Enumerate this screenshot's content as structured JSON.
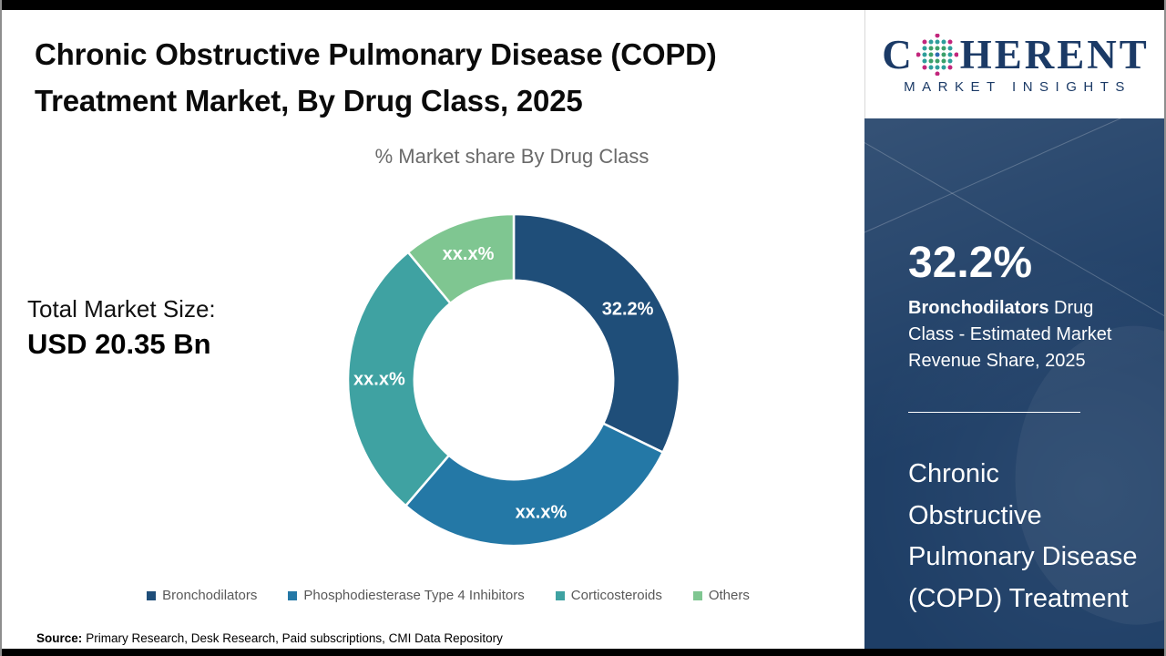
{
  "header": {
    "title": "Chronic Obstructive Pulmonary Disease (COPD) Treatment Market, By Drug Class, 2025"
  },
  "total_market": {
    "label": "Total Market Size:",
    "value": "USD 20.35 Bn"
  },
  "chart_data": {
    "type": "pie",
    "subtype": "donut",
    "title": "% Market share By Drug Class",
    "inner_radius_ratio": 0.6,
    "start_angle_deg": 0,
    "direction": "clockwise",
    "legend_position": "bottom",
    "segments": [
      {
        "name": "Bronchodilators",
        "label": "32.2%",
        "value": 32.2,
        "color": "#1F4E79"
      },
      {
        "name": "Phosphodiesterase Type 4 Inhibitors",
        "label": "xx.x%",
        "value": 29.1,
        "color": "#2478A6"
      },
      {
        "name": "Corticosteroids",
        "label": "xx.x%",
        "value": 27.7,
        "color": "#3FA2A2"
      },
      {
        "name": "Others",
        "label": "xx.x%",
        "value": 11.0,
        "color": "#7FC691"
      }
    ]
  },
  "sidebar": {
    "stat_value": "32.2%",
    "stat_description_bold": "Bronchodilators",
    "stat_description_rest": " Drug Class - Estimated Market Revenue Share, 2025",
    "heading": "Chronic Obstructive Pulmonary Disease (COPD) Treatment"
  },
  "logo": {
    "word_start": "C",
    "word_end": "HERENT",
    "tagline": "MARKET INSIGHTS"
  },
  "source": {
    "label": "Source:",
    "text": "Primary Research, Desk Research, Paid subscriptions, CMI Data Repository"
  },
  "colors": {
    "sidebar_bg": "#1E3E66",
    "logo_navy": "#1B3A66",
    "title_text": "#0B0B0B",
    "subtitle_gray": "#6A6A6A",
    "top_bottom_bars": "#000000"
  }
}
